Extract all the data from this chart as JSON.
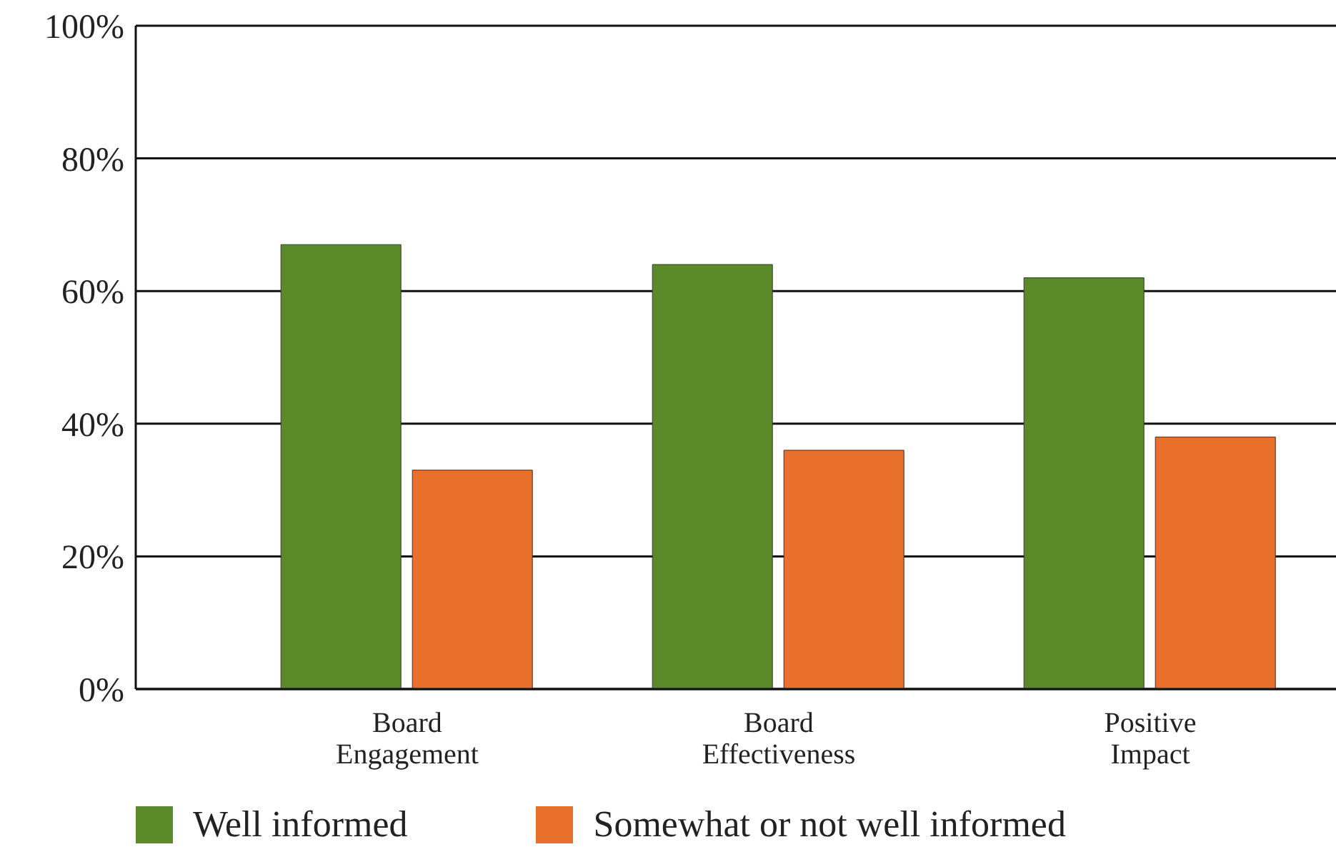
{
  "chart_data": {
    "type": "bar",
    "categories": [
      "Board Engagement",
      "Board Effectiveness",
      "Positive Impact"
    ],
    "series": [
      {
        "name": "Well informed",
        "color": "#5b8a2b",
        "values": [
          67,
          64,
          62
        ]
      },
      {
        "name": "Somewhat or not well informed",
        "color": "#e8702a",
        "values": [
          33,
          36,
          38
        ]
      }
    ],
    "ylim": [
      0,
      100
    ],
    "yticks": [
      {
        "value": 0,
        "label": "0%"
      },
      {
        "value": 20,
        "label": "20%"
      },
      {
        "value": 40,
        "label": "40%"
      },
      {
        "value": 60,
        "label": "60%"
      },
      {
        "value": 80,
        "label": "80%"
      },
      {
        "value": 100,
        "label": "100%"
      }
    ],
    "grid": "y",
    "legend": "bottom left"
  }
}
